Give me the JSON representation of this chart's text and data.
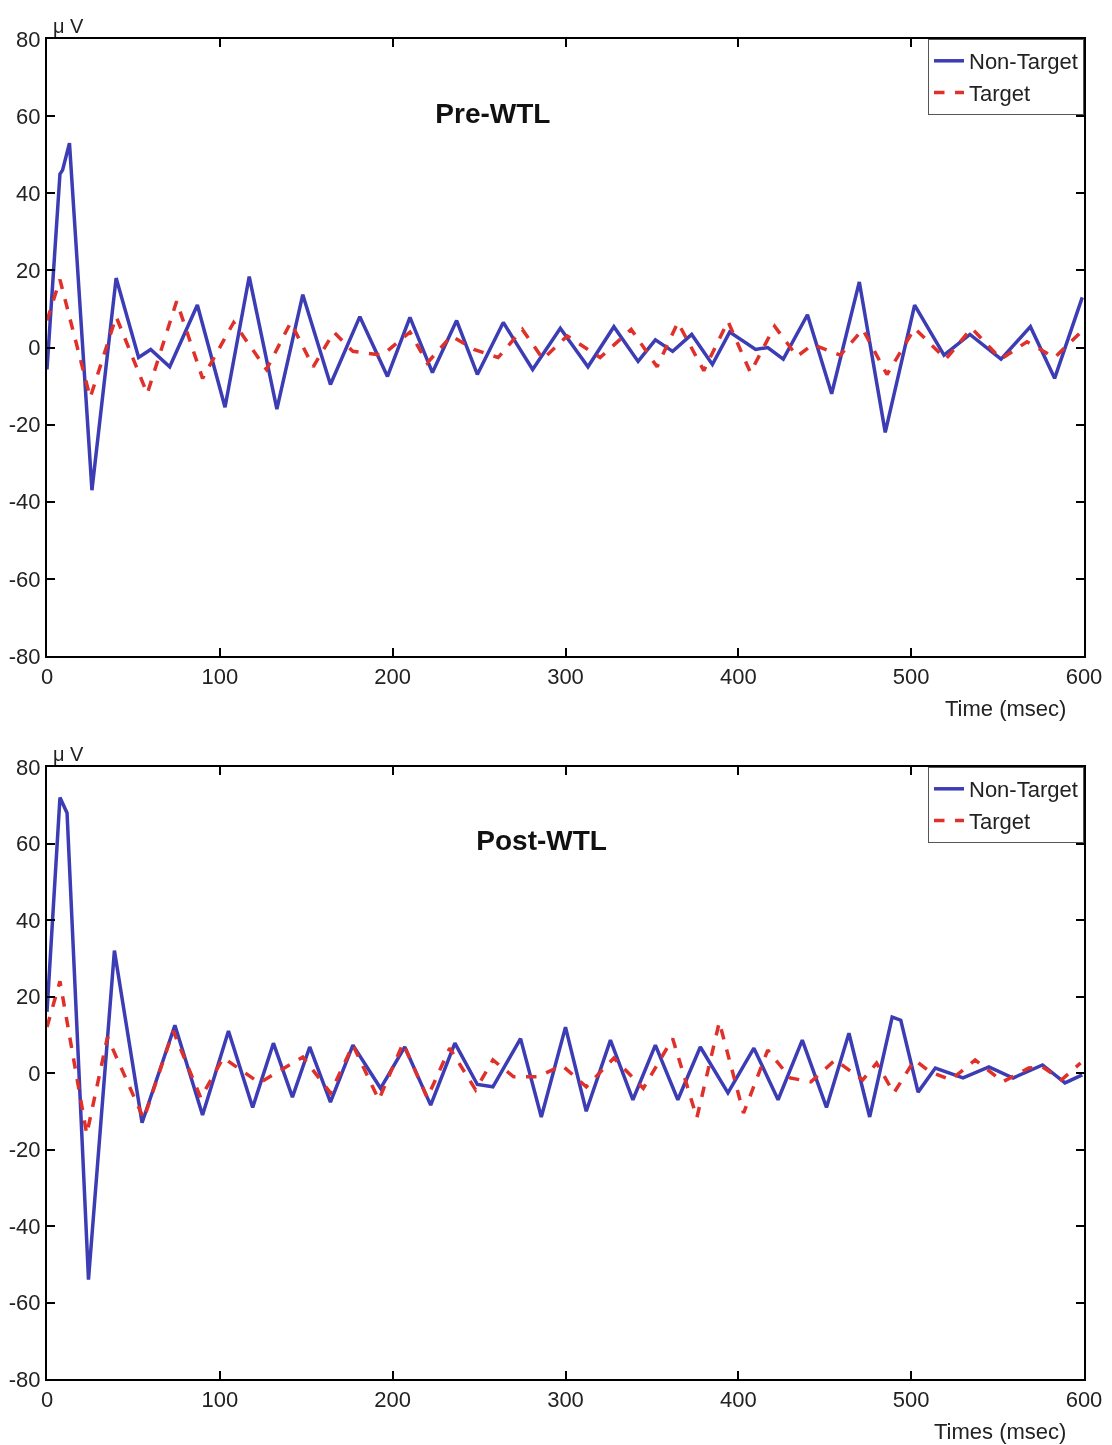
{
  "chart_data": [
    {
      "type": "line",
      "title": "Pre-WTL",
      "xlabel": "Time (msec)",
      "ylabel": "μ V",
      "xlim": [
        0,
        600
      ],
      "xticks": [
        0,
        100,
        200,
        300,
        400,
        500,
        600
      ],
      "ylim": [
        -80,
        80
      ],
      "yticks": [
        -80,
        -60,
        -40,
        -20,
        0,
        20,
        40,
        60,
        80
      ],
      "grid": false,
      "legend": "top right",
      "series": [
        {
          "name": "Non-Target",
          "color": "#3c3cb4",
          "line_style": "solid",
          "x": [
            0,
            7.5,
            9,
            13,
            26,
            40,
            53,
            60,
            71,
            87,
            103,
            117,
            133,
            148,
            164,
            181,
            197,
            210,
            223,
            237,
            249,
            264,
            281,
            297,
            313,
            328,
            342,
            352,
            362,
            373,
            385,
            395,
            410,
            417,
            426,
            440,
            454,
            470,
            485,
            502,
            519,
            534,
            552,
            569,
            583,
            599
          ],
          "values": [
            -5.7,
            45,
            46,
            53,
            -37,
            18,
            -2.6,
            -0.5,
            -5,
            11,
            -15.5,
            18.4,
            -16,
            13.7,
            -9.6,
            8,
            -7.5,
            7.8,
            -6.5,
            7,
            -7,
            6.5,
            -5.7,
            5,
            -5,
            5.4,
            -3.6,
            2,
            -1,
            3.4,
            -4.4,
            4,
            -0.5,
            0,
            -3,
            8.5,
            -12,
            17,
            -22,
            11,
            -2,
            3.4,
            -3,
            5.4,
            -8,
            13
          ]
        },
        {
          "name": "Target",
          "color": "#e0302a",
          "line_style": "dashed",
          "x": [
            0,
            7.5,
            25,
            40,
            58,
            75,
            90,
            108,
            127,
            141,
            154,
            166,
            177,
            194,
            210,
            220,
            234,
            247,
            261,
            275,
            287,
            301,
            320,
            338,
            353,
            365,
            380,
            394,
            407,
            421,
            434,
            443,
            459,
            472,
            486,
            502,
            520,
            535,
            552,
            567,
            583,
            598
          ],
          "values": [
            7,
            17.6,
            -13,
            8,
            -12,
            12,
            -8,
            6.5,
            -5.7,
            6.5,
            -5,
            4,
            -1,
            -2,
            4,
            -4,
            3,
            -0.5,
            -2.6,
            4.7,
            -3,
            3,
            -2.6,
            4.7,
            -5,
            6.5,
            -6,
            6.8,
            -6.5,
            5.5,
            -2.3,
            0.8,
            -2,
            4.7,
            -7,
            5,
            -3,
            5,
            -3,
            1.5,
            -2.6,
            3.9
          ]
        }
      ]
    },
    {
      "type": "line",
      "title": "Post-WTL",
      "xlabel": "Times (msec)",
      "ylabel": "μ V",
      "xlim": [
        0,
        600
      ],
      "xticks": [
        0,
        100,
        200,
        300,
        400,
        500,
        600
      ],
      "ylim": [
        -80,
        80
      ],
      "yticks": [
        -80,
        -60,
        -40,
        -20,
        0,
        20,
        40,
        60,
        80
      ],
      "grid": false,
      "legend": "top right",
      "series": [
        {
          "name": "Non-Target",
          "color": "#3c3cb4",
          "line_style": "solid",
          "x": [
            0,
            7.5,
            11.6,
            24,
            39,
            55,
            74,
            90,
            105,
            119,
            131,
            142,
            152,
            164,
            177,
            193,
            207,
            222,
            236,
            249,
            258,
            274,
            286,
            300,
            312,
            326,
            339,
            352,
            365,
            378,
            394,
            409,
            423,
            437,
            451,
            464,
            476,
            489,
            494,
            504,
            514,
            530,
            545,
            559,
            576,
            589,
            599
          ],
          "values": [
            16,
            72,
            68,
            -54,
            32,
            -13,
            12.5,
            -11,
            11,
            -9,
            7.8,
            -6.3,
            6.8,
            -7.6,
            7.3,
            -4,
            6.8,
            -8.4,
            7.8,
            -3,
            -3.6,
            9,
            -11.5,
            12,
            -10,
            8.6,
            -7,
            7.3,
            -7,
            6.8,
            -5.2,
            6.5,
            -7,
            8.6,
            -9,
            10.4,
            -11.5,
            14.6,
            13.8,
            -5,
            1.3,
            -1.3,
            1.6,
            -1.3,
            2.1,
            -2.6,
            -0.5
          ]
        },
        {
          "name": "Target",
          "color": "#e0302a",
          "line_style": "dashed",
          "x": [
            0,
            7.5,
            23,
            35,
            56,
            73,
            89,
            102,
            123,
            148,
            164,
            177,
            192,
            206,
            220,
            233,
            248,
            258,
            270,
            284,
            298,
            312,
            328,
            345,
            362,
            376,
            389,
            403,
            417,
            430,
            442,
            456,
            472,
            480,
            490,
            502,
            511,
            523,
            537,
            553,
            568,
            576,
            587,
            598
          ],
          "values": [
            12,
            24,
            -16,
            9.4,
            -12,
            11,
            -6.5,
            4,
            -2.6,
            4.2,
            -5.2,
            7.3,
            -7,
            7.8,
            -6.5,
            6.5,
            -4.4,
            3.4,
            -1,
            -1,
            2,
            -3.6,
            3.9,
            -4,
            9,
            -11.7,
            13.3,
            -10.5,
            6,
            -1.3,
            -2.3,
            3.4,
            -1.8,
            2.6,
            -5.2,
            3.4,
            0.3,
            -1.8,
            3.4,
            -2.3,
            1.3,
            1.6,
            -1.8,
            2.6
          ]
        }
      ]
    }
  ]
}
